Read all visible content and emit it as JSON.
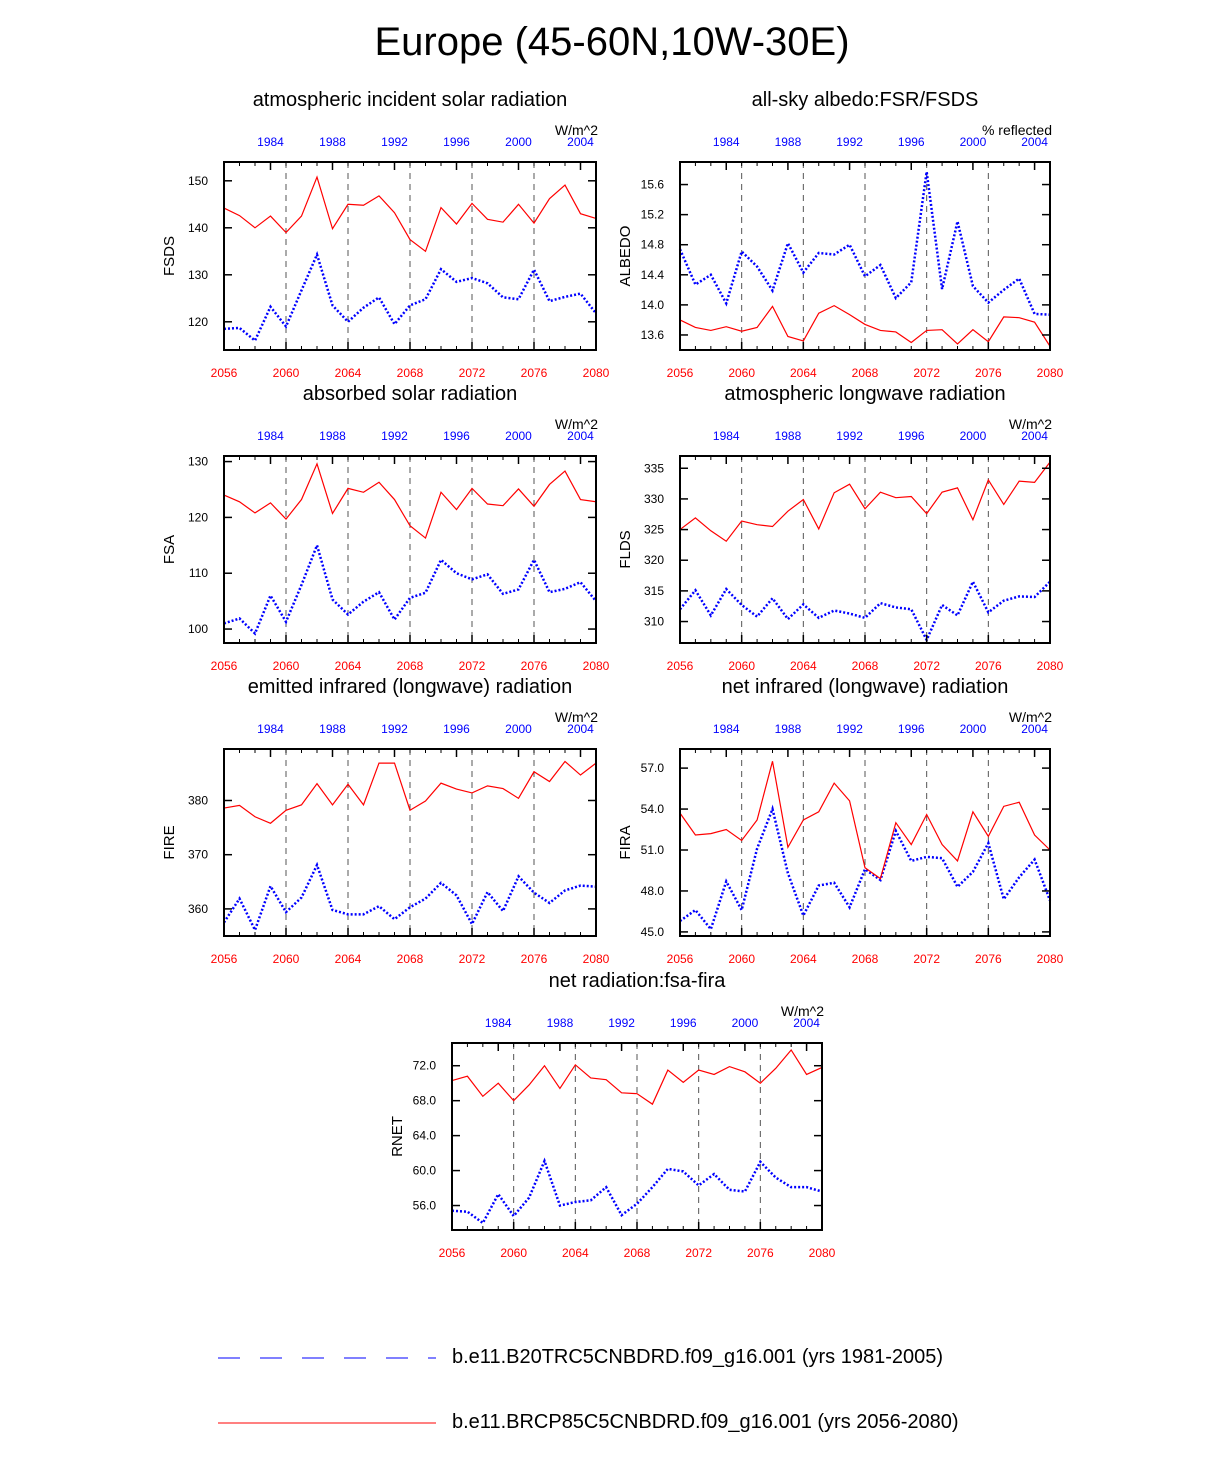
{
  "figure": {
    "title": "Europe (45-60N,10W-30E)",
    "colors": {
      "series1": "#0000ff",
      "series2": "#ff0000",
      "axis": "#000000"
    },
    "top_axis_ticks": [
      "1984",
      "1988",
      "1992",
      "1996",
      "2000",
      "2004"
    ],
    "bottom_axis_ticks": [
      "2056",
      "2060",
      "2064",
      "2068",
      "2072",
      "2076",
      "2080"
    ]
  },
  "chart_data": [
    {
      "type": "line",
      "title": "atmospheric incident solar radiation",
      "units": "W/m^2",
      "ylabel": "FSDS",
      "ylim": [
        114,
        154
      ],
      "yticks": [
        "120",
        "130",
        "140",
        "150"
      ],
      "ytick_values": [
        120,
        130,
        140,
        150
      ],
      "x_bottom": [
        2056,
        2057,
        2058,
        2059,
        2060,
        2061,
        2062,
        2063,
        2064,
        2065,
        2066,
        2067,
        2068,
        2069,
        2070,
        2071,
        2072,
        2073,
        2074,
        2075,
        2076,
        2077,
        2078,
        2079,
        2080
      ],
      "x_top_range": [
        1981,
        2005
      ],
      "series": [
        {
          "name": "b.e11.B20TRC5CNBDRD.f09_g16.001 (yrs 1981-2005)",
          "style": "dashed",
          "color": "#0000ff",
          "values": [
            118.5,
            118.7,
            116.0,
            123.2,
            119.0,
            126.7,
            134.3,
            123.5,
            120.0,
            123.0,
            125.2,
            119.5,
            123.5,
            124.8,
            131.2,
            128.5,
            129.3,
            128.2,
            125.2,
            124.8,
            131.1,
            124.4,
            125.3,
            126.0,
            121.8
          ]
        },
        {
          "name": "b.e11.BRCP85C5CNBDRD.f09_g16.001 (yrs 2056-2080)",
          "style": "solid",
          "color": "#ff0000",
          "values": [
            144.2,
            142.6,
            140.0,
            142.5,
            139.0,
            142.5,
            150.8,
            139.8,
            145.0,
            144.8,
            146.8,
            143.2,
            137.5,
            135.0,
            144.3,
            140.8,
            145.2,
            141.8,
            141.2,
            145.0,
            141.0,
            146.2,
            149.1,
            143.0,
            142.0
          ]
        }
      ]
    },
    {
      "type": "line",
      "title": "all-sky albedo:FSR/FSDS",
      "units": "% reflected",
      "ylabel": "ALBEDO",
      "ylim": [
        13.4,
        15.9
      ],
      "yticks": [
        "13.6",
        "14.0",
        "14.4",
        "14.8",
        "15.2",
        "15.6"
      ],
      "ytick_values": [
        13.6,
        14.0,
        14.4,
        14.8,
        15.2,
        15.6
      ],
      "x_bottom": [
        2056,
        2057,
        2058,
        2059,
        2060,
        2061,
        2062,
        2063,
        2064,
        2065,
        2066,
        2067,
        2068,
        2069,
        2070,
        2071,
        2072,
        2073,
        2074,
        2075,
        2076,
        2077,
        2078,
        2079,
        2080
      ],
      "x_top_range": [
        1981,
        2005
      ],
      "series": [
        {
          "name": "b.e11.B20TRC5CNBDRD.f09_g16.001 (yrs 1981-2005)",
          "style": "dashed",
          "color": "#0000ff",
          "values": [
            14.74,
            14.27,
            14.4,
            14.02,
            14.71,
            14.51,
            14.19,
            14.82,
            14.43,
            14.69,
            14.67,
            14.8,
            14.38,
            14.53,
            14.09,
            14.3,
            15.77,
            14.21,
            15.11,
            14.25,
            14.03,
            14.2,
            14.35,
            13.88,
            13.87
          ]
        },
        {
          "name": "b.e11.BRCP85C5CNBDRD.f09_g16.001 (yrs 2056-2080)",
          "style": "solid",
          "color": "#ff0000",
          "values": [
            13.8,
            13.7,
            13.66,
            13.71,
            13.65,
            13.7,
            13.98,
            13.58,
            13.52,
            13.89,
            13.99,
            13.87,
            13.74,
            13.66,
            13.64,
            13.5,
            13.66,
            13.67,
            13.48,
            13.67,
            13.51,
            13.84,
            13.83,
            13.77,
            13.45
          ]
        }
      ]
    },
    {
      "type": "line",
      "title": "absorbed solar radiation",
      "units": "W/m^2",
      "ylabel": "FSA",
      "ylim": [
        97.5,
        131
      ],
      "yticks": [
        "100",
        "110",
        "120",
        "130"
      ],
      "ytick_values": [
        100,
        110,
        120,
        130
      ],
      "x_bottom": [
        2056,
        2057,
        2058,
        2059,
        2060,
        2061,
        2062,
        2063,
        2064,
        2065,
        2066,
        2067,
        2068,
        2069,
        2070,
        2071,
        2072,
        2073,
        2074,
        2075,
        2076,
        2077,
        2078,
        2079,
        2080
      ],
      "x_top_range": [
        1981,
        2005
      ],
      "series": [
        {
          "name": "b.e11.B20TRC5CNBDRD.f09_g16.001 (yrs 1981-2005)",
          "style": "dashed",
          "color": "#0000ff",
          "values": [
            101.0,
            101.9,
            99.2,
            106.0,
            101.3,
            107.9,
            115.0,
            105.3,
            102.6,
            104.9,
            106.6,
            101.7,
            105.6,
            106.5,
            112.4,
            110.0,
            108.9,
            109.8,
            106.3,
            107.1,
            112.4,
            106.6,
            107.2,
            108.4,
            105.0
          ]
        },
        {
          "name": "b.e11.BRCP85C5CNBDRD.f09_g16.001 (yrs 2056-2080)",
          "style": "solid",
          "color": "#ff0000",
          "values": [
            124.0,
            122.8,
            120.8,
            122.6,
            119.7,
            123.2,
            129.6,
            120.7,
            125.2,
            124.5,
            126.3,
            123.2,
            118.5,
            116.3,
            124.5,
            121.4,
            125.2,
            122.4,
            122.1,
            125.1,
            122.0,
            125.9,
            128.3,
            123.2,
            122.8
          ]
        }
      ]
    },
    {
      "type": "line",
      "title": "atmospheric longwave radiation",
      "units": "W/m^2",
      "ylabel": "FLDS",
      "ylim": [
        306.5,
        337
      ],
      "yticks": [
        "310",
        "315",
        "320",
        "325",
        "330",
        "335"
      ],
      "ytick_values": [
        310,
        315,
        320,
        325,
        330,
        335
      ],
      "x_bottom": [
        2056,
        2057,
        2058,
        2059,
        2060,
        2061,
        2062,
        2063,
        2064,
        2065,
        2066,
        2067,
        2068,
        2069,
        2070,
        2071,
        2072,
        2073,
        2074,
        2075,
        2076,
        2077,
        2078,
        2079,
        2080
      ],
      "x_top_range": [
        1981,
        2005
      ],
      "series": [
        {
          "name": "b.e11.B20TRC5CNBDRD.f09_g16.001 (yrs 1981-2005)",
          "style": "dashed",
          "color": "#0000ff",
          "values": [
            312.0,
            315.1,
            311.0,
            315.3,
            312.7,
            310.8,
            313.8,
            310.4,
            312.8,
            310.6,
            311.8,
            311.3,
            310.6,
            313.0,
            312.3,
            312.0,
            307.0,
            312.7,
            311.0,
            316.5,
            311.5,
            313.4,
            314.1,
            314.0,
            316.5
          ]
        },
        {
          "name": "b.e11.BRCP85C5CNBDRD.f09_g16.001 (yrs 2056-2080)",
          "style": "solid",
          "color": "#ff0000",
          "values": [
            325.0,
            326.9,
            324.8,
            323.1,
            326.4,
            325.8,
            325.5,
            328.0,
            329.9,
            325.1,
            331.0,
            332.4,
            328.4,
            331.1,
            330.2,
            330.4,
            327.6,
            331.1,
            331.8,
            326.6,
            333.1,
            329.1,
            332.9,
            332.7,
            336.0
          ]
        }
      ]
    },
    {
      "type": "line",
      "title": "emitted infrared (longwave) radiation",
      "units": "W/m^2",
      "ylabel": "FIRE",
      "ylim": [
        355,
        389.5
      ],
      "yticks": [
        "360",
        "370",
        "380"
      ],
      "ytick_values": [
        360,
        370,
        380
      ],
      "x_bottom": [
        2056,
        2057,
        2058,
        2059,
        2060,
        2061,
        2062,
        2063,
        2064,
        2065,
        2066,
        2067,
        2068,
        2069,
        2070,
        2071,
        2072,
        2073,
        2074,
        2075,
        2076,
        2077,
        2078,
        2079,
        2080
      ],
      "x_top_range": [
        1981,
        2005
      ],
      "series": [
        {
          "name": "b.e11.B20TRC5CNBDRD.f09_g16.001 (yrs 1981-2005)",
          "style": "dashed",
          "color": "#0000ff",
          "values": [
            357.5,
            361.9,
            356.1,
            364.2,
            359.4,
            362.1,
            368.1,
            359.8,
            359.0,
            359.0,
            360.5,
            358.1,
            360.3,
            361.9,
            364.8,
            362.5,
            357.2,
            363.1,
            359.6,
            366.0,
            363.0,
            361.1,
            363.4,
            364.3,
            364.1
          ]
        },
        {
          "name": "b.e11.BRCP85C5CNBDRD.f09_g16.001 (yrs 2056-2080)",
          "style": "solid",
          "color": "#ff0000",
          "values": [
            378.6,
            379.1,
            377.0,
            375.8,
            378.2,
            379.2,
            383.1,
            379.2,
            383.0,
            379.2,
            386.9,
            386.9,
            378.2,
            379.9,
            383.2,
            382.1,
            381.4,
            382.7,
            382.2,
            380.4,
            385.3,
            383.5,
            387.2,
            384.7,
            386.9
          ]
        }
      ]
    },
    {
      "type": "line",
      "title": "net infrared (longwave) radiation",
      "units": "W/m^2",
      "ylabel": "FIRA",
      "ylim": [
        44.7,
        58.4
      ],
      "yticks": [
        "45.0",
        "48.0",
        "51.0",
        "54.0",
        "57.0"
      ],
      "ytick_values": [
        45,
        48,
        51,
        54,
        57
      ],
      "x_bottom": [
        2056,
        2057,
        2058,
        2059,
        2060,
        2061,
        2062,
        2063,
        2064,
        2065,
        2066,
        2067,
        2068,
        2069,
        2070,
        2071,
        2072,
        2073,
        2074,
        2075,
        2076,
        2077,
        2078,
        2079,
        2080
      ],
      "x_top_range": [
        1981,
        2005
      ],
      "series": [
        {
          "name": "b.e11.B20TRC5CNBDRD.f09_g16.001 (yrs 1981-2005)",
          "style": "dashed",
          "color": "#0000ff",
          "values": [
            45.8,
            46.6,
            45.2,
            48.7,
            46.6,
            51.1,
            54.0,
            49.3,
            46.2,
            48.4,
            48.6,
            46.8,
            49.6,
            48.8,
            52.4,
            50.2,
            50.5,
            50.4,
            48.3,
            49.4,
            51.5,
            47.4,
            49.0,
            50.3,
            47.3
          ]
        },
        {
          "name": "b.e11.BRCP85C5CNBDRD.f09_g16.001 (yrs 2056-2080)",
          "style": "solid",
          "color": "#ff0000",
          "values": [
            53.7,
            52.1,
            52.2,
            52.5,
            51.7,
            53.2,
            57.5,
            51.2,
            53.2,
            53.8,
            55.9,
            54.6,
            49.7,
            48.9,
            53.0,
            51.4,
            53.6,
            51.4,
            50.2,
            53.8,
            52.0,
            54.2,
            54.5,
            52.1,
            51.0
          ]
        }
      ]
    },
    {
      "type": "line",
      "title": "net radiation:fsa-fira",
      "units": "W/m^2",
      "ylabel": "RNET",
      "ylim": [
        53.2,
        74.6
      ],
      "yticks": [
        "56.0",
        "60.0",
        "64.0",
        "68.0",
        "72.0"
      ],
      "ytick_values": [
        56,
        60,
        64,
        68,
        72
      ],
      "x_bottom": [
        2056,
        2057,
        2058,
        2059,
        2060,
        2061,
        2062,
        2063,
        2064,
        2065,
        2066,
        2067,
        2068,
        2069,
        2070,
        2071,
        2072,
        2073,
        2074,
        2075,
        2076,
        2077,
        2078,
        2079,
        2080
      ],
      "x_top_range": [
        1981,
        2005
      ],
      "series": [
        {
          "name": "b.e11.B20TRC5CNBDRD.f09_g16.001 (yrs 1981-2005)",
          "style": "dashed",
          "color": "#0000ff",
          "values": [
            55.4,
            55.3,
            54.0,
            57.3,
            54.8,
            56.9,
            61.1,
            56.0,
            56.4,
            56.6,
            58.1,
            54.9,
            56.2,
            58.1,
            60.2,
            59.9,
            58.3,
            59.6,
            57.8,
            57.6,
            61.0,
            59.2,
            58.1,
            58.1,
            57.6
          ]
        },
        {
          "name": "b.e11.BRCP85C5CNBDRD.f09_g16.001 (yrs 2056-2080)",
          "style": "solid",
          "color": "#ff0000",
          "values": [
            70.3,
            70.8,
            68.5,
            70.0,
            68.0,
            69.8,
            72.0,
            69.4,
            72.1,
            70.6,
            70.4,
            68.9,
            68.8,
            67.6,
            71.5,
            70.1,
            71.5,
            71.0,
            71.9,
            71.3,
            70.0,
            71.7,
            73.8,
            71.0,
            71.8
          ]
        }
      ]
    }
  ],
  "legend": [
    {
      "label": "b.e11.B20TRC5CNBDRD.f09_g16.001 (yrs 1981-2005)",
      "style": "dashed",
      "color": "#0000ff"
    },
    {
      "label": "b.e11.BRCP85C5CNBDRD.f09_g16.001 (yrs 2056-2080)",
      "style": "solid",
      "color": "#ff0000"
    }
  ]
}
